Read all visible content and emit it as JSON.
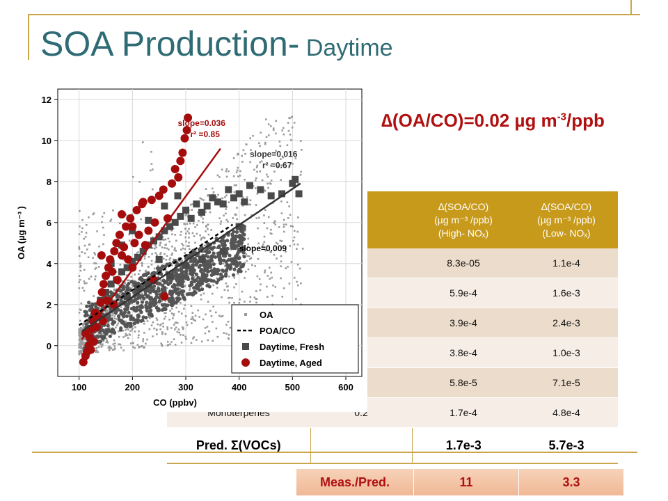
{
  "slide": {
    "title_main": "SOA Production-",
    "title_sub": " Daytime",
    "formula_main": "∆(OA/CO)=0.02 µg m",
    "formula_sup": "-3",
    "formula_tail": "/ppb"
  },
  "table": {
    "headers": [
      "",
      ")",
      "∆(SOA/CO)\n(µg m⁻³ /ppb)\n(High- NOₓ)",
      "∆(SOA/CO)\n(µg m⁻³ /ppb)\n(Low- NOₓ)"
    ],
    "rows": [
      [
        "",
        "",
        "8.3e-05",
        "1.1e-4"
      ],
      [
        "",
        "",
        "5.9e-4",
        "1.6e-3"
      ],
      [
        "",
        "",
        "3.9e-4",
        "2.4e-3"
      ],
      [
        "",
        "",
        "3.8e-4",
        "1.0e-3"
      ],
      [
        "",
        "",
        "5.8e-5",
        "7.1e-5"
      ],
      [
        "Monoterpenes",
        "0.2",
        "1.7e-4",
        "4.8e-4"
      ]
    ],
    "sum_row": [
      "Pred. Σ(VOCs)",
      "",
      "1.7e-3",
      "5.7e-3"
    ],
    "ratio_row": [
      "Meas./Pred.",
      "11",
      "3.3"
    ]
  },
  "chart_data": {
    "type": "scatter",
    "xlabel": "CO (ppbv)",
    "ylabel": "OA (µg m⁻³ )",
    "xlim": [
      60,
      630
    ],
    "ylim": [
      -1.5,
      12.5
    ],
    "xticks": [
      "100",
      "200",
      "300",
      "400",
      "500",
      "600"
    ],
    "yticks": [
      "0",
      "2",
      "4",
      "6",
      "8",
      "10",
      "12"
    ],
    "legend": {
      "placement": "bottom-right",
      "entries": [
        "OA",
        "POA/CO",
        "Daytime, Fresh",
        "Daytime, Aged"
      ]
    },
    "colors": {
      "oa": "#9a9a9a",
      "fresh": "#4a4a4a",
      "aged": "#a50d0d",
      "poa": "#000000"
    },
    "annotations": [
      {
        "text": "slope=0.036",
        "sub": "r² =0.85",
        "x": 285,
        "y": 10.7,
        "color": "#a50d0d"
      },
      {
        "text": "slope=0.016",
        "sub": "r² =0.67",
        "x": 420,
        "y": 9.2,
        "color": "#333333"
      },
      {
        "text": "slope=0.009",
        "x": 400,
        "y": 4.6,
        "color": "#000000"
      }
    ],
    "series": [
      {
        "name": "Daytime, Aged",
        "fit": {
          "x0": 105,
          "y0": 0.3,
          "x1": 365,
          "y1": 9.6
        }
      },
      {
        "name": "Daytime, Fresh",
        "fit": {
          "x0": 105,
          "y0": 0.7,
          "x1": 515,
          "y1": 7.9
        }
      },
      {
        "name": "POA/CO",
        "fit": {
          "x0": 100,
          "y0": 1.0,
          "x1": 388,
          "y1": 5.9
        }
      },
      {
        "name": "Daytime, Aged",
        "points": [
          [
            108,
            -0.8
          ],
          [
            112,
            -0.5
          ],
          [
            115,
            -0.3
          ],
          [
            118,
            0.0
          ],
          [
            120,
            0.4
          ],
          [
            123,
            0.8
          ],
          [
            126,
            1.2
          ],
          [
            130,
            1.6
          ],
          [
            133,
            0.9
          ],
          [
            136,
            1.4
          ],
          [
            140,
            2.1
          ],
          [
            143,
            2.6
          ],
          [
            146,
            3.0
          ],
          [
            150,
            3.4
          ],
          [
            152,
            2.2
          ],
          [
            155,
            3.8
          ],
          [
            158,
            4.2
          ],
          [
            162,
            3.6
          ],
          [
            166,
            4.6
          ],
          [
            170,
            5.0
          ],
          [
            172,
            3.2
          ],
          [
            176,
            5.4
          ],
          [
            180,
            4.4
          ],
          [
            184,
            4.8
          ],
          [
            188,
            5.8
          ],
          [
            192,
            4.2
          ],
          [
            196,
            6.2
          ],
          [
            200,
            3.8
          ],
          [
            204,
            5.0
          ],
          [
            208,
            6.6
          ],
          [
            212,
            5.4
          ],
          [
            218,
            6.9
          ],
          [
            224,
            4.9
          ],
          [
            230,
            5.6
          ],
          [
            236,
            7.1
          ],
          [
            242,
            6.0
          ],
          [
            250,
            7.3
          ],
          [
            258,
            7.6
          ],
          [
            266,
            6.2
          ],
          [
            274,
            7.9
          ],
          [
            280,
            8.6
          ],
          [
            286,
            8.2
          ],
          [
            290,
            9.0
          ],
          [
            294,
            9.4
          ],
          [
            298,
            10.1
          ],
          [
            302,
            10.5
          ],
          [
            304,
            11.1
          ],
          [
            260,
            2.4
          ],
          [
            240,
            3.2
          ],
          [
            180,
            6.4
          ],
          [
            165,
            2.0
          ],
          [
            145,
            1.2
          ],
          [
            128,
            0.2
          ],
          [
            122,
            -0.2
          ],
          [
            112,
            0.6
          ],
          [
            142,
            4.4
          ],
          [
            200,
            5.8
          ],
          [
            220,
            7.0
          ]
        ]
      },
      {
        "name": "Daytime, Fresh",
        "points": [
          [
            140,
            2.2
          ],
          [
            150,
            2.6
          ],
          [
            160,
            3.0
          ],
          [
            170,
            3.2
          ],
          [
            180,
            3.6
          ],
          [
            190,
            3.8
          ],
          [
            200,
            4.1
          ],
          [
            210,
            4.3
          ],
          [
            220,
            4.6
          ],
          [
            230,
            4.9
          ],
          [
            240,
            5.1
          ],
          [
            250,
            5.3
          ],
          [
            260,
            5.6
          ],
          [
            270,
            5.8
          ],
          [
            280,
            6.0
          ],
          [
            290,
            6.3
          ],
          [
            300,
            6.6
          ],
          [
            310,
            6.2
          ],
          [
            320,
            6.9
          ],
          [
            330,
            6.5
          ],
          [
            340,
            6.8
          ],
          [
            350,
            7.2
          ],
          [
            360,
            7.0
          ],
          [
            370,
            6.9
          ],
          [
            380,
            7.6
          ],
          [
            390,
            7.2
          ],
          [
            400,
            7.4
          ],
          [
            410,
            7.0
          ],
          [
            420,
            7.8
          ],
          [
            440,
            7.6
          ],
          [
            460,
            7.3
          ],
          [
            480,
            7.4
          ],
          [
            500,
            7.9
          ],
          [
            512,
            7.4
          ],
          [
            505,
            8.1
          ],
          [
            400,
            5.8
          ],
          [
            370,
            4.6
          ],
          [
            330,
            4.2
          ],
          [
            300,
            3.9
          ],
          [
            270,
            3.4
          ],
          [
            250,
            4.2
          ],
          [
            230,
            3.0
          ],
          [
            210,
            2.8
          ],
          [
            190,
            2.4
          ],
          [
            260,
            6.8
          ],
          [
            285,
            7.3
          ],
          [
            230,
            6.1
          ],
          [
            200,
            5.6
          ],
          [
            180,
            4.9
          ],
          [
            160,
            4.0
          ]
        ]
      }
    ]
  }
}
